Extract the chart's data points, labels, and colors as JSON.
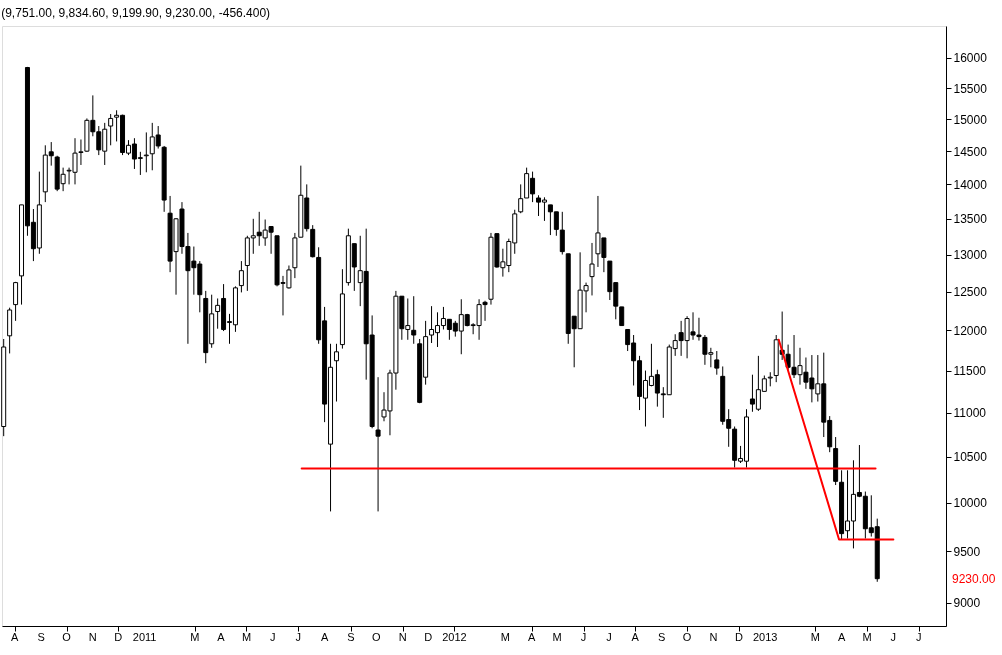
{
  "chart_data": {
    "type": "candlestick",
    "title": "(9,751.00, 9,834.60, 9,199.90, 9,230.00, -456.400)",
    "x": [
      "2010-07-19",
      "2010-07-26",
      "2010-08-02",
      "2010-08-09",
      "2010-08-16",
      "2010-08-23",
      "2010-08-30",
      "2010-09-06",
      "2010-09-13",
      "2010-09-20",
      "2010-09-27",
      "2010-10-04",
      "2010-10-11",
      "2010-10-18",
      "2010-10-25",
      "2010-11-01",
      "2010-11-08",
      "2010-11-15",
      "2010-11-22",
      "2010-11-29",
      "2010-12-06",
      "2010-12-13",
      "2010-12-20",
      "2010-12-27",
      "2011-01-03",
      "2011-01-10",
      "2011-01-17",
      "2011-01-24",
      "2011-01-31",
      "2011-02-07",
      "2011-02-14",
      "2011-02-21",
      "2011-02-28",
      "2011-03-07",
      "2011-03-14",
      "2011-03-21",
      "2011-03-28",
      "2011-04-04",
      "2011-04-11",
      "2011-04-18",
      "2011-04-25",
      "2011-05-02",
      "2011-05-09",
      "2011-05-16",
      "2011-05-23",
      "2011-05-30",
      "2011-06-06",
      "2011-06-13",
      "2011-06-20",
      "2011-06-27",
      "2011-07-04",
      "2011-07-11",
      "2011-07-18",
      "2011-07-25",
      "2011-08-01",
      "2011-08-08",
      "2011-08-15",
      "2011-08-22",
      "2011-08-29",
      "2011-09-05",
      "2011-09-12",
      "2011-09-19",
      "2011-09-26",
      "2011-10-03",
      "2011-10-10",
      "2011-10-17",
      "2011-10-24",
      "2011-10-31",
      "2011-11-07",
      "2011-11-14",
      "2011-11-21",
      "2011-11-28",
      "2011-12-05",
      "2011-12-12",
      "2011-12-19",
      "2011-12-26",
      "2012-01-02",
      "2012-01-09",
      "2012-01-16",
      "2012-01-23",
      "2012-01-30",
      "2012-02-06",
      "2012-02-13",
      "2012-02-20",
      "2012-02-27",
      "2012-03-05",
      "2012-03-12",
      "2012-03-19",
      "2012-03-26",
      "2012-04-02",
      "2012-04-09",
      "2012-04-16",
      "2012-04-23",
      "2012-04-30",
      "2012-05-07",
      "2012-05-14",
      "2012-05-21",
      "2012-05-28",
      "2012-06-04",
      "2012-06-11",
      "2012-06-18",
      "2012-06-25",
      "2012-07-02",
      "2012-07-09",
      "2012-07-16",
      "2012-07-23",
      "2012-07-30",
      "2012-08-06",
      "2012-08-13",
      "2012-08-20",
      "2012-08-27",
      "2012-09-03",
      "2012-09-10",
      "2012-09-17",
      "2012-09-24",
      "2012-10-01",
      "2012-10-08",
      "2012-10-15",
      "2012-10-22",
      "2012-10-29",
      "2012-11-05",
      "2012-11-12",
      "2012-11-19",
      "2012-11-26",
      "2012-12-03",
      "2012-12-10",
      "2012-12-17",
      "2012-12-24",
      "2012-12-31",
      "2013-01-07",
      "2013-01-14",
      "2013-01-21",
      "2013-01-28",
      "2013-02-04",
      "2013-02-11",
      "2013-02-18",
      "2013-02-25",
      "2013-03-04",
      "2013-03-11",
      "2013-03-18",
      "2013-03-25",
      "2013-04-01",
      "2013-04-08",
      "2013-04-15",
      "2013-04-22",
      "2013-04-29",
      "2013-05-06",
      "2013-05-13"
    ],
    "ohlc": [
      [
        10840,
        11890,
        10730,
        11790
      ],
      [
        11930,
        12290,
        11710,
        12260
      ],
      [
        12330,
        12630,
        12120,
        12620
      ],
      [
        12710,
        13700,
        12330,
        13700
      ],
      [
        15840,
        15850,
        13260,
        13400
      ],
      [
        13450,
        13640,
        12910,
        13080
      ],
      [
        13090,
        14190,
        13010,
        13700
      ],
      [
        13890,
        14590,
        13740,
        14440
      ],
      [
        14490,
        14640,
        14280,
        14430
      ],
      [
        14410,
        14430,
        13900,
        13930
      ],
      [
        14010,
        14250,
        13900,
        14150
      ],
      [
        14200,
        14250,
        14000,
        14210
      ],
      [
        14180,
        14700,
        14000,
        14470
      ],
      [
        14480,
        14680,
        14290,
        14490
      ],
      [
        14500,
        15010,
        14490,
        14980
      ],
      [
        14980,
        15380,
        14730,
        14800
      ],
      [
        14800,
        14890,
        14440,
        14520
      ],
      [
        14500,
        14940,
        14290,
        14840
      ],
      [
        14890,
        15080,
        14590,
        15010
      ],
      [
        15030,
        15140,
        14650,
        15060
      ],
      [
        15060,
        15070,
        14440,
        14480
      ],
      [
        14470,
        14670,
        14440,
        14590
      ],
      [
        14610,
        14700,
        14230,
        14380
      ],
      [
        14400,
        14490,
        14140,
        14390
      ],
      [
        14430,
        14790,
        14180,
        14440
      ],
      [
        14460,
        14940,
        14210,
        14720
      ],
      [
        14750,
        14890,
        14540,
        14580
      ],
      [
        14560,
        14580,
        13600,
        13770
      ],
      [
        13580,
        13830,
        12760,
        12910
      ],
      [
        13040,
        13510,
        12460,
        13500
      ],
      [
        13640,
        13740,
        13010,
        13110
      ],
      [
        13110,
        13300,
        11830,
        12780
      ],
      [
        12910,
        13110,
        12460,
        12820
      ],
      [
        12870,
        12910,
        12230,
        12460
      ],
      [
        12410,
        12510,
        11590,
        11720
      ],
      [
        11830,
        12460,
        11780,
        12210
      ],
      [
        12240,
        12410,
        12020,
        12320
      ],
      [
        12410,
        12600,
        11990,
        12010
      ],
      [
        12110,
        12210,
        11830,
        12100
      ],
      [
        12070,
        12570,
        11980,
        12550
      ],
      [
        12580,
        12910,
        12490,
        12780
      ],
      [
        12850,
        13260,
        12510,
        13230
      ],
      [
        13230,
        13500,
        13010,
        13260
      ],
      [
        13310,
        13600,
        13120,
        13260
      ],
      [
        13230,
        13490,
        13120,
        13340
      ],
      [
        13390,
        13390,
        13010,
        13310
      ],
      [
        13260,
        13260,
        12570,
        12590
      ],
      [
        12620,
        12710,
        12190,
        12610
      ],
      [
        12550,
        12850,
        12540,
        12790
      ],
      [
        12820,
        13300,
        12680,
        13230
      ],
      [
        13240,
        14280,
        13240,
        13840
      ],
      [
        13800,
        14000,
        13320,
        13360
      ],
      [
        13350,
        13410,
        12960,
        12970
      ],
      [
        12960,
        13100,
        11830,
        11880
      ],
      [
        12120,
        12300,
        10890,
        11100
      ],
      [
        10640,
        11830,
        9910,
        11540
      ],
      [
        11620,
        11830,
        11130,
        11730
      ],
      [
        11820,
        12800,
        11770,
        12470
      ],
      [
        12620,
        13360,
        12580,
        13260
      ],
      [
        13150,
        13150,
        12510,
        12830
      ],
      [
        12620,
        13260,
        12310,
        12780
      ],
      [
        12770,
        13360,
        11390,
        11830
      ],
      [
        11940,
        12190,
        10820,
        10840
      ],
      [
        10800,
        11420,
        9910,
        10730
      ],
      [
        10950,
        11240,
        10900,
        11030
      ],
      [
        11020,
        11510,
        10740,
        11470
      ],
      [
        11470,
        12510,
        11270,
        12440
      ],
      [
        12440,
        12440,
        11880,
        12020
      ],
      [
        12010,
        12410,
        11880,
        12060
      ],
      [
        12000,
        12440,
        11830,
        11940
      ],
      [
        11830,
        11890,
        11110,
        11120
      ],
      [
        11420,
        12120,
        11330,
        11920
      ],
      [
        11940,
        12310,
        11840,
        12010
      ],
      [
        11970,
        12230,
        11790,
        12060
      ],
      [
        12060,
        12300,
        12010,
        12150
      ],
      [
        12140,
        12140,
        11880,
        12010
      ],
      [
        12090,
        12120,
        11920,
        11990
      ],
      [
        11990,
        12400,
        11700,
        12200
      ],
      [
        12200,
        12210,
        12050,
        12060
      ],
      [
        12060,
        12090,
        11950,
        12070
      ],
      [
        12060,
        12400,
        11880,
        12330
      ],
      [
        12360,
        12380,
        12120,
        12330
      ],
      [
        12400,
        13300,
        12330,
        13240
      ],
      [
        13290,
        13290,
        12820,
        12830
      ],
      [
        12820,
        13080,
        12700,
        12900
      ],
      [
        12850,
        13220,
        12760,
        13180
      ],
      [
        13160,
        13630,
        13010,
        13570
      ],
      [
        13600,
        14000,
        13580,
        13790
      ],
      [
        13800,
        14250,
        13800,
        14160
      ],
      [
        14090,
        14190,
        13740,
        13860
      ],
      [
        13800,
        13840,
        13540,
        13740
      ],
      [
        13740,
        13810,
        13470,
        13770
      ],
      [
        13700,
        13700,
        13270,
        13600
      ],
      [
        13600,
        13600,
        13260,
        13350
      ],
      [
        13340,
        13600,
        13000,
        13040
      ],
      [
        13010,
        13010,
        11830,
        11960
      ],
      [
        12180,
        12180,
        11540,
        12020
      ],
      [
        12020,
        13030,
        12020,
        12520
      ],
      [
        12510,
        12620,
        12230,
        12580
      ],
      [
        12700,
        13160,
        12450,
        12870
      ],
      [
        13010,
        13830,
        12830,
        13300
      ],
      [
        13230,
        13230,
        12760,
        12960
      ],
      [
        12910,
        12910,
        12390,
        12500
      ],
      [
        12620,
        12620,
        12140,
        12310
      ],
      [
        12300,
        12300,
        12060,
        12060
      ],
      [
        12010,
        12010,
        11740,
        11820
      ],
      [
        11840,
        11940,
        11320,
        11620
      ],
      [
        11620,
        11680,
        11030,
        11190
      ],
      [
        11170,
        11500,
        10840,
        11380
      ],
      [
        11320,
        11830,
        11310,
        11430
      ],
      [
        11450,
        11510,
        11070,
        11230
      ],
      [
        11220,
        11300,
        10940,
        11210
      ],
      [
        11210,
        11820,
        11210,
        11790
      ],
      [
        11770,
        11950,
        11680,
        11870
      ],
      [
        11970,
        12120,
        11680,
        11870
      ],
      [
        11870,
        12180,
        11650,
        12150
      ],
      [
        11980,
        12230,
        11880,
        11940
      ],
      [
        11940,
        12160,
        11870,
        11920
      ],
      [
        11910,
        11940,
        11570,
        11700
      ],
      [
        11700,
        11780,
        11540,
        11720
      ],
      [
        11630,
        11740,
        11450,
        11530
      ],
      [
        11430,
        11550,
        10860,
        10900
      ],
      [
        10920,
        11040,
        10610,
        10820
      ],
      [
        10810,
        10840,
        10380,
        10460
      ],
      [
        10450,
        10620,
        10430,
        10480
      ],
      [
        10450,
        11040,
        10380,
        10950
      ],
      [
        11160,
        11450,
        11010,
        11100
      ],
      [
        11040,
        11680,
        11020,
        11270
      ],
      [
        11250,
        11440,
        11250,
        11400
      ],
      [
        11410,
        11480,
        11310,
        11420
      ],
      [
        11440,
        11940,
        11360,
        11880
      ],
      [
        11750,
        12240,
        11630,
        11700
      ],
      [
        11700,
        11820,
        11510,
        11540
      ],
      [
        11540,
        11940,
        11410,
        11450
      ],
      [
        11450,
        11780,
        11330,
        11560
      ],
      [
        11480,
        11660,
        11280,
        11360
      ],
      [
        11410,
        11690,
        11120,
        11280
      ],
      [
        11220,
        11690,
        11130,
        11340
      ],
      [
        11340,
        11720,
        10720,
        10890
      ],
      [
        10910,
        10960,
        10550,
        10610
      ],
      [
        10590,
        10720,
        10190,
        10230
      ],
      [
        10220,
        10350,
        9620,
        9680
      ],
      [
        9710,
        10350,
        9630,
        9810
      ],
      [
        9810,
        10460,
        9530,
        10090
      ],
      [
        10110,
        10630,
        10060,
        10070
      ],
      [
        10070,
        10120,
        9630,
        9730
      ],
      [
        9740,
        10080,
        9650,
        9690
      ],
      [
        9751,
        9834.6,
        9199.9,
        9230
      ]
    ],
    "series": [
      {
        "type": "line",
        "color": "#ff0000",
        "x": [
          "2011-07-05",
          "2013-05-11"
        ],
        "values": [
          10370,
          10370
        ]
      },
      {
        "type": "line",
        "color": "#ff0000",
        "x": [
          "2013-01-17",
          "2013-03-29",
          "2013-06-01"
        ],
        "values": [
          11880,
          9620,
          9620
        ]
      }
    ],
    "log": true,
    "ylim": [
      8780,
      16550
    ],
    "yticks": [
      9000,
      9500,
      10000,
      10500,
      11000,
      11500,
      12000,
      12500,
      13000,
      13500,
      14000,
      14500,
      15000,
      15500,
      16000
    ],
    "xlim": [
      "2010-07-17",
      "2013-08-02"
    ],
    "xticks": [
      {
        "value": "2010-08-01",
        "label": "A"
      },
      {
        "value": "2010-09-01",
        "label": "S"
      },
      {
        "value": "2010-10-01",
        "label": "O"
      },
      {
        "value": "2010-11-01",
        "label": "N"
      },
      {
        "value": "2010-12-01",
        "label": "D"
      },
      {
        "value": "2011-01-01",
        "label": "2011"
      },
      {
        "value": "2011-03-01",
        "label": "M"
      },
      {
        "value": "2011-04-01",
        "label": "A"
      },
      {
        "value": "2011-05-01",
        "label": "M"
      },
      {
        "value": "2011-06-01",
        "label": "J"
      },
      {
        "value": "2011-07-01",
        "label": "J"
      },
      {
        "value": "2011-08-01",
        "label": "A"
      },
      {
        "value": "2011-09-01",
        "label": "S"
      },
      {
        "value": "2011-10-01",
        "label": "O"
      },
      {
        "value": "2011-11-01",
        "label": "N"
      },
      {
        "value": "2011-12-01",
        "label": "D"
      },
      {
        "value": "2012-01-01",
        "label": "2012"
      },
      {
        "value": "2012-03-01",
        "label": "M"
      },
      {
        "value": "2012-04-01",
        "label": "A"
      },
      {
        "value": "2012-05-01",
        "label": "M"
      },
      {
        "value": "2012-06-01",
        "label": "J"
      },
      {
        "value": "2012-07-01",
        "label": "J"
      },
      {
        "value": "2012-08-01",
        "label": "A"
      },
      {
        "value": "2012-09-01",
        "label": "S"
      },
      {
        "value": "2012-10-01",
        "label": "O"
      },
      {
        "value": "2012-11-01",
        "label": "N"
      },
      {
        "value": "2012-12-01",
        "label": "D"
      },
      {
        "value": "2013-01-01",
        "label": "2013"
      },
      {
        "value": "2013-03-01",
        "label": "M"
      },
      {
        "value": "2013-04-01",
        "label": "A"
      },
      {
        "value": "2013-05-01",
        "label": "M"
      },
      {
        "value": "2013-06-01",
        "label": "J"
      },
      {
        "value": "2013-07-01",
        "label": "J"
      }
    ],
    "grid": false,
    "annotations": [
      "9230.00"
    ]
  }
}
